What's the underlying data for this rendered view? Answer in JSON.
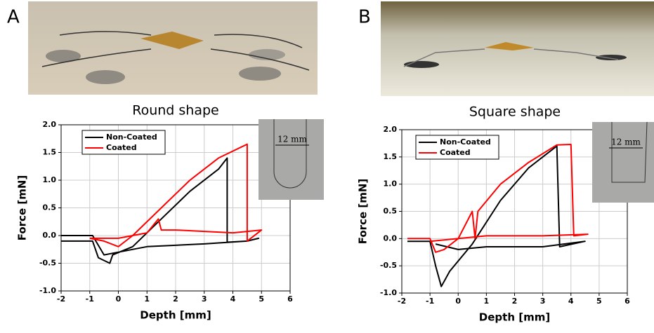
{
  "chart_data": [
    {
      "type": "line",
      "panel_label": "A",
      "title": "Round shape",
      "x_label": "Depth [mm]",
      "y_label": "Force [mN]",
      "inset_label": "12 mm",
      "xlim": [
        -2,
        6
      ],
      "ylim": [
        -1.0,
        2.0
      ],
      "xticks": [
        -2,
        -1,
        0,
        1,
        2,
        3,
        4,
        5,
        6
      ],
      "yticks": [
        {
          "value": -1.0,
          "label": "-1.0"
        },
        -0.5,
        {
          "value": 0.0,
          "label": "0.0"
        },
        0.5,
        {
          "value": 1.0,
          "label": "1.0"
        },
        1.5,
        {
          "value": 2.0,
          "label": "2.0"
        }
      ],
      "grid": true,
      "legend": "upper left",
      "series": [
        {
          "name": "Non-Coated",
          "color": "#000000",
          "x": [
            -2,
            -0.9,
            -0.7,
            -0.3,
            -0.2,
            0.5,
            1.5,
            2.5,
            3.5,
            3.8,
            3.8,
            4.5,
            4.9,
            4.5,
            3,
            1,
            0,
            -0.5,
            -0.9,
            -2
          ],
          "values": [
            -0.1,
            -0.1,
            -0.4,
            -0.5,
            -0.35,
            -0.2,
            0.3,
            0.8,
            1.2,
            1.4,
            -0.12,
            -0.1,
            -0.05,
            -0.1,
            -0.15,
            -0.2,
            -0.3,
            -0.35,
            0.0,
            0.0
          ]
        },
        {
          "name": "Coated",
          "color": "#ff0000",
          "x": [
            -1,
            -0.5,
            0,
            0.5,
            1.5,
            2.5,
            3.5,
            4.5,
            4.5,
            5,
            4,
            2,
            1.5,
            1.4,
            1,
            0,
            -1
          ],
          "values": [
            -0.05,
            -0.1,
            -0.2,
            0.0,
            0.5,
            1.0,
            1.4,
            1.65,
            -0.1,
            0.1,
            0.05,
            0.1,
            0.1,
            0.3,
            0.05,
            -0.05,
            -0.05
          ]
        }
      ]
    },
    {
      "type": "line",
      "panel_label": "B",
      "title": "Square shape",
      "x_label": "Depth [mm]",
      "y_label": "Force [mN]",
      "inset_label": "12 mm",
      "xlim": [
        -2,
        6
      ],
      "ylim": [
        -1.0,
        2.0
      ],
      "xticks": [
        -2,
        -1,
        0,
        1,
        2,
        3,
        4,
        5,
        6
      ],
      "yticks": [
        {
          "value": -1.0,
          "label": "-1.0"
        },
        -0.5,
        {
          "value": 0.0,
          "label": "0.0"
        },
        0.5,
        {
          "value": 1.0,
          "label": "1.0"
        },
        1.5,
        {
          "value": 2.0,
          "label": "2.0"
        }
      ],
      "grid": true,
      "legend": "upper left",
      "series": [
        {
          "name": "Non-Coated",
          "color": "#000000",
          "x": [
            -1.8,
            -1,
            -0.8,
            -0.6,
            -0.3,
            0.5,
            1.5,
            2.5,
            3.5,
            3.6,
            4.5,
            3,
            1,
            0,
            -0.8
          ],
          "values": [
            -0.05,
            -0.05,
            -0.5,
            -0.88,
            -0.6,
            -0.1,
            0.7,
            1.3,
            1.7,
            -0.15,
            -0.05,
            -0.15,
            -0.15,
            -0.2,
            -0.1
          ]
        },
        {
          "name": "Coated",
          "color": "#ff0000",
          "x": [
            -1.8,
            -1,
            -0.8,
            -0.5,
            0,
            0.5,
            0.6,
            0.7,
            1.5,
            2.5,
            3.5,
            4.0,
            4.1,
            4.6,
            3,
            1,
            0,
            -1
          ],
          "values": [
            0.0,
            0.0,
            -0.25,
            -0.2,
            0.0,
            0.5,
            0.0,
            0.5,
            1.0,
            1.4,
            1.72,
            1.73,
            0.05,
            0.08,
            0.05,
            0.05,
            0.0,
            -0.05
          ]
        }
      ]
    }
  ]
}
